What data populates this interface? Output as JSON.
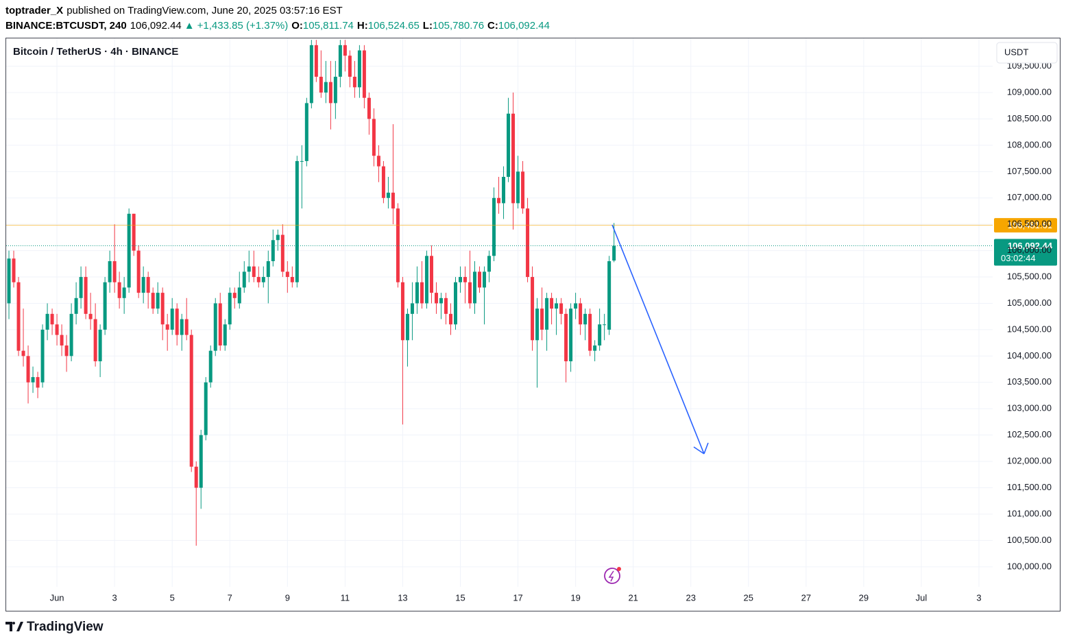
{
  "header": {
    "author": "toptrader_X",
    "published": "published on TradingView.com, June 20, 2025 03:57:16 EST",
    "symbol": "BINANCE:BTCUSDT, 240",
    "change": "+1,433.85 (+1.37%)",
    "ohlc": [
      {
        "key": "O:",
        "value": "105,811.74"
      },
      {
        "key": "H:",
        "value": "106,524.65"
      },
      {
        "key": "L:",
        "value": "105,780.76"
      },
      {
        "key": "C:",
        "value": "106,092.44"
      }
    ]
  },
  "chart_data": {
    "type": "candlestick",
    "title": "Bitcoin / TetherUS · 4h · BINANCE",
    "currency": "USDT",
    "x": [
      -40,
      -36,
      -32,
      -28,
      -24,
      -20,
      -16,
      -12,
      -8,
      -4,
      0,
      4,
      8,
      12,
      16,
      20,
      24,
      28,
      32,
      36,
      40,
      44,
      48,
      52,
      56,
      60,
      64,
      68,
      72,
      76,
      80,
      84,
      88,
      92,
      96,
      100,
      104,
      108,
      112,
      116,
      120,
      124,
      128,
      132,
      136,
      140,
      144,
      148,
      152,
      156,
      160,
      164,
      168,
      172,
      176,
      180,
      184,
      188,
      192,
      196,
      200,
      204,
      208,
      212,
      216,
      220,
      224,
      228,
      232,
      236,
      240,
      244,
      248,
      252,
      256,
      260,
      264,
      268,
      272,
      276,
      280,
      284,
      288,
      292,
      296,
      300,
      304,
      308,
      312,
      316,
      320,
      324,
      328,
      332,
      336,
      340,
      344,
      348,
      352,
      356,
      360,
      364,
      368,
      372,
      376,
      380,
      384,
      388,
      392,
      396,
      400,
      404,
      408,
      412,
      416,
      420,
      424,
      428,
      432,
      436,
      440,
      444,
      448,
      452,
      456,
      460,
      464
    ],
    "open": [
      105000,
      105850,
      105400,
      104100,
      104000,
      103500,
      103600,
      103500,
      104500,
      104800,
      104600,
      104400,
      104200,
      104000,
      104800,
      105100,
      105500,
      104800,
      104700,
      103900,
      104500,
      105400,
      105800,
      105400,
      105100,
      105300,
      106700,
      106000,
      105200,
      105500,
      105200,
      104900,
      105200,
      104600,
      104500,
      104900,
      104400,
      104700,
      104400,
      101900,
      101500,
      102500,
      103500,
      104100,
      105000,
      104200,
      104600,
      105200,
      105000,
      105300,
      105600,
      105700,
      105500,
      105400,
      105500,
      105800,
      106200,
      106300,
      105600,
      105500,
      105400,
      107700,
      107700,
      108800,
      109900,
      109300,
      109000,
      109200,
      108800,
      109300,
      109900,
      109700,
      109300,
      109100,
      109800,
      108900,
      108500,
      107800,
      107600,
      107000,
      107100,
      106800,
      105400,
      104300,
      104800,
      105000,
      105400,
      105000,
      105900,
      105200,
      105000,
      105100,
      104800,
      104600,
      105400,
      105500,
      105400,
      105000,
      105600,
      105300,
      105600,
      105900,
      107000,
      106900,
      107400,
      108600,
      106900,
      107500,
      106800,
      105500,
      104300,
      104900,
      104500,
      105100,
      104900,
      105000,
      104800,
      103900,
      104900,
      105000,
      104600,
      104800,
      104100,
      104200,
      104600,
      104500,
      105811.74
    ],
    "high": [
      106000,
      106000,
      105500,
      104900,
      104200,
      103800,
      103700,
      104600,
      105000,
      104900,
      104800,
      104600,
      104400,
      105000,
      105400,
      105700,
      105700,
      105200,
      105000,
      104600,
      105500,
      106000,
      106500,
      105600,
      105500,
      106800,
      106700,
      106100,
      105700,
      105600,
      105300,
      105400,
      105300,
      104800,
      105100,
      105000,
      104800,
      105100,
      104500,
      102000,
      102600,
      103600,
      104200,
      105100,
      105200,
      104700,
      105300,
      105300,
      105600,
      105800,
      106000,
      106000,
      105700,
      105700,
      106000,
      106400,
      106400,
      106500,
      105800,
      105700,
      107800,
      108000,
      108900,
      110000,
      110000,
      109800,
      109600,
      109600,
      109600,
      110000,
      110000,
      109800,
      109600,
      109900,
      109900,
      109000,
      108700,
      108000,
      107700,
      107400,
      108400,
      106900,
      105500,
      104900,
      105400,
      105700,
      105800,
      106000,
      106100,
      105400,
      105200,
      105200,
      105000,
      105500,
      105700,
      105700,
      106000,
      105800,
      105700,
      105700,
      106000,
      107200,
      107400,
      107600,
      108900,
      109000,
      107800,
      107700,
      107000,
      105700,
      105100,
      105300,
      105200,
      105200,
      105100,
      105100,
      104900,
      105000,
      105200,
      105100,
      104900,
      104900,
      104300,
      104900,
      104800,
      105900,
      106524.65
    ],
    "low": [
      104700,
      105300,
      104000,
      103800,
      103100,
      103300,
      103200,
      103400,
      104300,
      104400,
      104200,
      104000,
      103700,
      103900,
      104600,
      104900,
      104700,
      104500,
      103800,
      103600,
      104400,
      105200,
      105200,
      104900,
      104800,
      105200,
      105900,
      105100,
      105000,
      104900,
      104800,
      104800,
      104300,
      104100,
      104400,
      104200,
      104100,
      104300,
      101800,
      100400,
      101100,
      102400,
      103400,
      104000,
      104100,
      104100,
      104500,
      104900,
      104900,
      105200,
      105400,
      105400,
      105300,
      105300,
      105000,
      105700,
      106000,
      105500,
      105200,
      105300,
      105300,
      106800,
      107600,
      108700,
      109200,
      108900,
      108800,
      108300,
      108500,
      109100,
      109400,
      109100,
      108900,
      108900,
      108700,
      108200,
      107600,
      107300,
      106900,
      106800,
      106500,
      105300,
      102700,
      103800,
      104300,
      104800,
      104900,
      104900,
      105000,
      104800,
      104700,
      104600,
      104400,
      104500,
      105200,
      105000,
      104900,
      104800,
      105200,
      104600,
      105400,
      105800,
      106700,
      106600,
      107300,
      106400,
      106800,
      106700,
      105400,
      104100,
      103400,
      104300,
      104100,
      104600,
      104400,
      104600,
      103500,
      103700,
      104700,
      104400,
      104300,
      104000,
      103900,
      104100,
      104300,
      104400,
      105780.76
    ],
    "close": [
      105850,
      105400,
      104100,
      104000,
      103500,
      103600,
      103400,
      104500,
      104800,
      104600,
      104400,
      104200,
      104000,
      104800,
      105100,
      105500,
      104800,
      104700,
      103900,
      104500,
      105400,
      105800,
      105400,
      105100,
      105300,
      106700,
      106000,
      105200,
      105500,
      105200,
      104900,
      105200,
      104600,
      104500,
      104900,
      104400,
      104700,
      104400,
      101900,
      101500,
      102500,
      103500,
      104100,
      105000,
      104200,
      104600,
      105200,
      105100,
      105300,
      105600,
      105700,
      105500,
      105400,
      105500,
      105800,
      106200,
      106300,
      105600,
      105500,
      105400,
      107700,
      107700,
      108800,
      109900,
      109300,
      109000,
      109200,
      108800,
      109300,
      109900,
      109700,
      109300,
      109100,
      109800,
      108900,
      108500,
      107800,
      107600,
      107000,
      107100,
      106800,
      105400,
      104300,
      104800,
      105000,
      105400,
      105000,
      105900,
      105200,
      105000,
      105100,
      104800,
      104600,
      105400,
      105500,
      105400,
      105000,
      105600,
      105300,
      105600,
      105900,
      107000,
      106900,
      107400,
      108600,
      106900,
      107500,
      106800,
      105500,
      104300,
      104900,
      104500,
      105100,
      104900,
      105000,
      104800,
      103900,
      104900,
      105000,
      104600,
      104800,
      104100,
      104200,
      104600,
      104600,
      105800,
      106092.44
    ],
    "up_color": "#089981",
    "down_color": "#f23645",
    "xlim": [
      -42.3,
      779.4
    ],
    "xticks": [
      {
        "value": 0,
        "label": "Jun"
      },
      {
        "value": 48,
        "label": "3"
      },
      {
        "value": 96,
        "label": "5"
      },
      {
        "value": 144,
        "label": "7"
      },
      {
        "value": 192,
        "label": "9"
      },
      {
        "value": 240,
        "label": "11"
      },
      {
        "value": 288,
        "label": "13"
      },
      {
        "value": 336,
        "label": "15"
      },
      {
        "value": 384,
        "label": "17"
      },
      {
        "value": 432,
        "label": "19"
      },
      {
        "value": 480,
        "label": "21"
      },
      {
        "value": 528,
        "label": "23"
      },
      {
        "value": 576,
        "label": "25"
      },
      {
        "value": 624,
        "label": "27"
      },
      {
        "value": 672,
        "label": "29"
      },
      {
        "value": 720,
        "label": "Jul"
      },
      {
        "value": 768,
        "label": "3"
      }
    ],
    "ylim": [
      99165,
      110028
    ],
    "yticks": [
      {
        "value": 100000,
        "label": "100,000.00"
      },
      {
        "value": 100500,
        "label": "100,500.00"
      },
      {
        "value": 101000,
        "label": "101,000.00"
      },
      {
        "value": 101500,
        "label": "101,500.00"
      },
      {
        "value": 102000,
        "label": "102,000.00"
      },
      {
        "value": 102500,
        "label": "102,500.00"
      },
      {
        "value": 103000,
        "label": "103,000.00"
      },
      {
        "value": 103500,
        "label": "103,500.00"
      },
      {
        "value": 104000,
        "label": "104,000.00"
      },
      {
        "value": 104500,
        "label": "104,500.00"
      },
      {
        "value": 105000,
        "label": "105,000.00"
      },
      {
        "value": 105500,
        "label": "105,500.00"
      },
      {
        "value": 106000,
        "label": "106,000.00"
      },
      {
        "value": 106500,
        "label": "106,500.00"
      },
      {
        "value": 107000,
        "label": "107,000.00"
      },
      {
        "value": 107500,
        "label": "107,500.00"
      },
      {
        "value": 108000,
        "label": "108,000.00"
      },
      {
        "value": 108500,
        "label": "108,500.00"
      },
      {
        "value": 109000,
        "label": "109,000.00"
      },
      {
        "value": 109500,
        "label": "109,500.00"
      }
    ],
    "grid": true,
    "price_line": {
      "value": 106481.61,
      "label": "106,481.61",
      "color": "#f7a600"
    },
    "last_price": {
      "value": 106092.44,
      "label": "106,092.44",
      "countdown": "03:02:44"
    }
  },
  "footer": {
    "logo": "TradingView"
  }
}
